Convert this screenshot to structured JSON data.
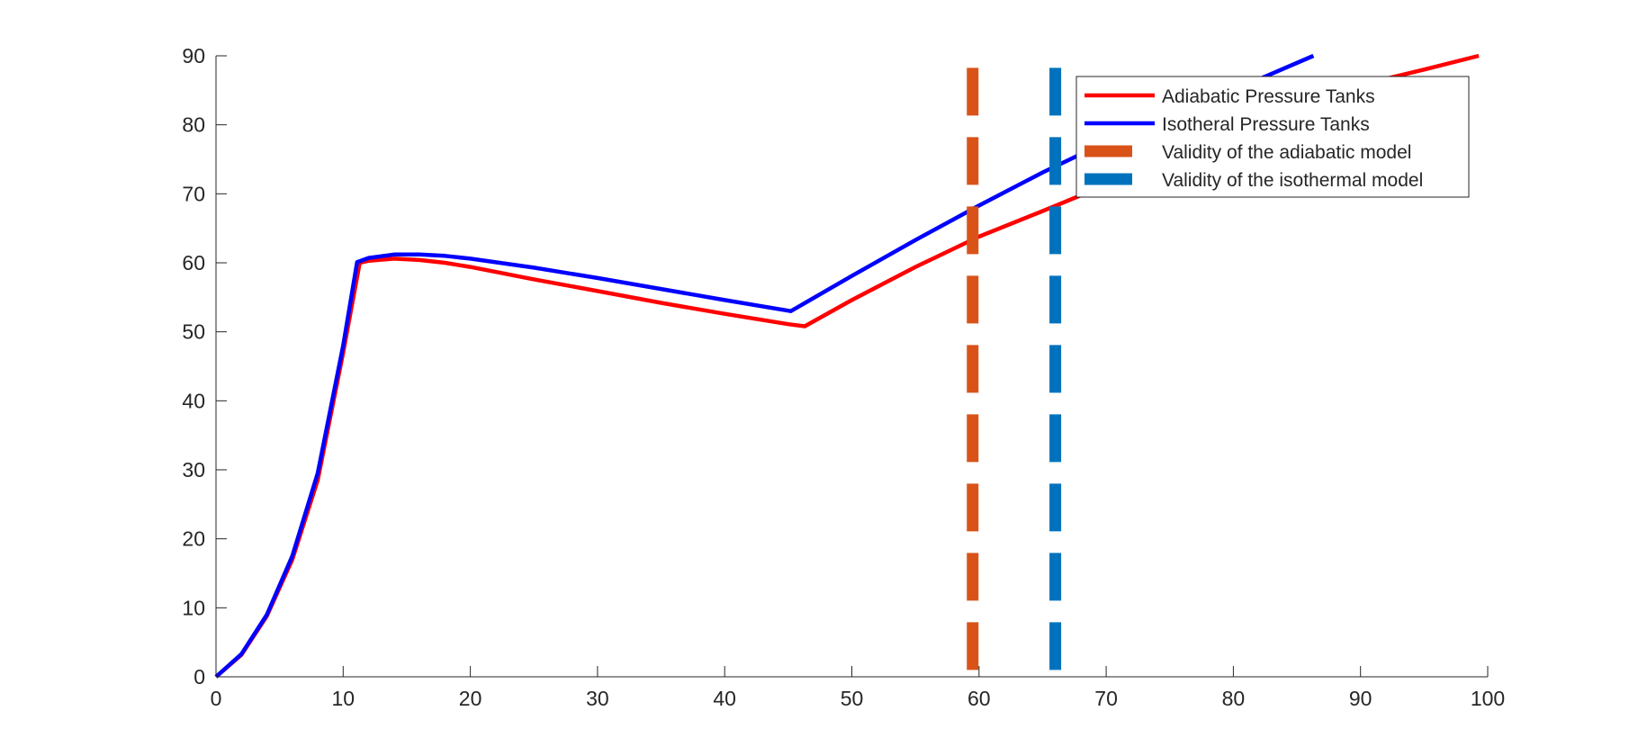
{
  "chart_data": {
    "type": "line",
    "title": "",
    "xlabel": "",
    "ylabel": "",
    "xlim": [
      0,
      100
    ],
    "ylim": [
      0,
      90
    ],
    "xticks": [
      0,
      10,
      20,
      30,
      40,
      50,
      60,
      70,
      80,
      90,
      100
    ],
    "yticks": [
      0,
      10,
      20,
      30,
      40,
      50,
      60,
      70,
      80,
      90
    ],
    "grid": false,
    "legend_position": "top-right",
    "series": [
      {
        "name": "Adiabatic Pressure Tanks",
        "color": "#ff0000",
        "style": "solid",
        "points": [
          [
            0,
            0
          ],
          [
            2,
            3.2
          ],
          [
            4,
            8.8
          ],
          [
            6,
            17
          ],
          [
            8,
            28.5
          ],
          [
            10,
            47
          ],
          [
            11.3,
            60
          ],
          [
            12,
            60.3
          ],
          [
            14,
            60.6
          ],
          [
            16,
            60.4
          ],
          [
            18,
            60
          ],
          [
            20,
            59.4
          ],
          [
            25,
            57.6
          ],
          [
            30,
            55.9
          ],
          [
            35,
            54.2
          ],
          [
            40,
            52.6
          ],
          [
            45,
            51.1
          ],
          [
            46.3,
            50.8
          ],
          [
            50,
            54.6
          ],
          [
            55,
            59.4
          ],
          [
            60,
            63.8
          ],
          [
            65,
            67.5
          ],
          [
            70,
            71.3
          ],
          [
            75,
            75
          ],
          [
            80,
            79
          ],
          [
            85,
            82.5
          ],
          [
            90,
            85.8
          ],
          [
            95,
            88
          ],
          [
            99.3,
            90
          ]
        ]
      },
      {
        "name": "Isotheral Pressure Tanks",
        "color": "#0000ff",
        "style": "solid",
        "points": [
          [
            0,
            0
          ],
          [
            2,
            3.3
          ],
          [
            4,
            9
          ],
          [
            6,
            17.5
          ],
          [
            8,
            29.5
          ],
          [
            10,
            48
          ],
          [
            11.1,
            60.1
          ],
          [
            12,
            60.7
          ],
          [
            14,
            61.2
          ],
          [
            16,
            61.2
          ],
          [
            18,
            61
          ],
          [
            20,
            60.6
          ],
          [
            25,
            59.3
          ],
          [
            30,
            57.8
          ],
          [
            35,
            56.2
          ],
          [
            40,
            54.6
          ],
          [
            45.2,
            53
          ],
          [
            50,
            58.1
          ],
          [
            55,
            63.3
          ],
          [
            60,
            68.3
          ],
          [
            65,
            73.1
          ],
          [
            70,
            77.5
          ],
          [
            75,
            81.4
          ],
          [
            80,
            85
          ],
          [
            86.3,
            90
          ]
        ]
      },
      {
        "name": "Validity of the adiabatic model",
        "color": "#d95319",
        "style": "dashed",
        "x": 59.5,
        "y_range": [
          1,
          90
        ]
      },
      {
        "name": "Validity of the isothermal model",
        "color": "#0072bd",
        "style": "dashed",
        "x": 66,
        "y_range": [
          1,
          90
        ]
      }
    ]
  }
}
